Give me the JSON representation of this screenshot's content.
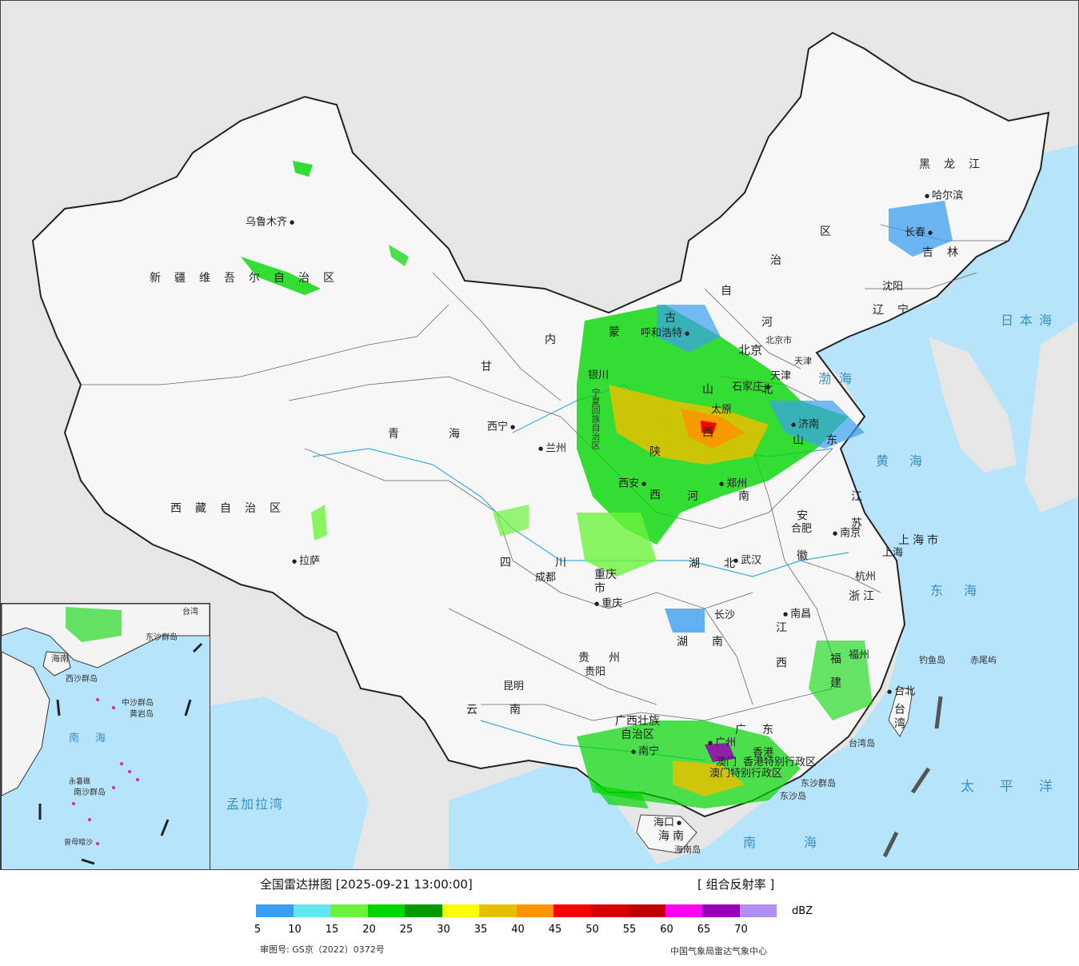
{
  "map": {
    "provinces": [
      {
        "id": "xinjiang",
        "label": "新疆维吾尔自治区"
      },
      {
        "id": "xizang",
        "label": "西藏自治区"
      },
      {
        "id": "qinghai",
        "label": "青海"
      },
      {
        "id": "gansu",
        "label": "甘"
      },
      {
        "id": "neimenggu",
        "label": "内"
      },
      {
        "id": "neimenggu-2",
        "label": "蒙"
      },
      {
        "id": "neimenggu-3",
        "label": "古"
      },
      {
        "id": "neimenggu-4",
        "label": "自"
      },
      {
        "id": "neimenggu-5",
        "label": "治"
      },
      {
        "id": "neimenggu-6",
        "label": "区"
      },
      {
        "id": "heilongjiang",
        "label": "黑龙江"
      },
      {
        "id": "jilin",
        "label": "吉林"
      },
      {
        "id": "liaoning",
        "label": "辽宁"
      },
      {
        "id": "hebei",
        "label": "河北"
      },
      {
        "id": "shanxi",
        "label": "山西"
      },
      {
        "id": "shandong",
        "label": "山东"
      },
      {
        "id": "henan",
        "label": "河南"
      },
      {
        "id": "shaanxi",
        "label": "陕西"
      },
      {
        "id": "ningxia",
        "label": "宁夏回族自治区"
      },
      {
        "id": "sichuan",
        "label": "四川"
      },
      {
        "id": "hubei",
        "label": "湖北"
      },
      {
        "id": "anhui",
        "label": "安徽"
      },
      {
        "id": "jiangsu",
        "label": "江苏"
      },
      {
        "id": "shanghai",
        "label": "上海市"
      },
      {
        "id": "zhejiang",
        "label": "浙江"
      },
      {
        "id": "jiangxi",
        "label": "江西"
      },
      {
        "id": "hunan",
        "label": "湖南"
      },
      {
        "id": "guizhou",
        "label": "贵州"
      },
      {
        "id": "yunnan",
        "label": "云南"
      },
      {
        "id": "guangxi",
        "label": "广西壮族自治区"
      },
      {
        "id": "guangdong",
        "label": "广东"
      },
      {
        "id": "fujian",
        "label": "福建"
      },
      {
        "id": "chongqing",
        "label": "重庆市"
      },
      {
        "id": "hainan",
        "label": "海南"
      },
      {
        "id": "taiwan",
        "label": "台湾"
      },
      {
        "id": "hongkong",
        "label": "香港特别行政区"
      },
      {
        "id": "macao",
        "label": "澳门特别行政区"
      },
      {
        "id": "beijing",
        "label": "北京"
      },
      {
        "id": "tianjin",
        "label": "天津"
      }
    ],
    "cities": [
      {
        "name": "乌鲁木齐"
      },
      {
        "name": "拉萨"
      },
      {
        "name": "西宁"
      },
      {
        "name": "兰州"
      },
      {
        "name": "银川"
      },
      {
        "name": "呼和浩特"
      },
      {
        "name": "北京市"
      },
      {
        "name": "天津"
      },
      {
        "name": "石家庄"
      },
      {
        "name": "太原"
      },
      {
        "name": "济南"
      },
      {
        "name": "西安"
      },
      {
        "name": "郑州"
      },
      {
        "name": "成都"
      },
      {
        "name": "重庆"
      },
      {
        "name": "武汉"
      },
      {
        "name": "合肥"
      },
      {
        "name": "南京"
      },
      {
        "name": "上海"
      },
      {
        "name": "杭州"
      },
      {
        "name": "南昌"
      },
      {
        "name": "长沙"
      },
      {
        "name": "贵阳"
      },
      {
        "name": "昆明"
      },
      {
        "name": "南宁"
      },
      {
        "name": "广州"
      },
      {
        "name": "香港"
      },
      {
        "name": "澳门"
      },
      {
        "name": "福州"
      },
      {
        "name": "台北"
      },
      {
        "name": "海口"
      },
      {
        "name": "沈阳"
      },
      {
        "name": "长春"
      },
      {
        "name": "哈尔滨"
      }
    ],
    "seas": [
      {
        "id": "japan-sea",
        "label": "日本海"
      },
      {
        "id": "bohai",
        "label": "渤海"
      },
      {
        "id": "huanghai",
        "label": "黄海"
      },
      {
        "id": "donghai",
        "label": "东海"
      },
      {
        "id": "pacific",
        "label": "太平洋"
      },
      {
        "id": "nanhai",
        "label": "南海"
      },
      {
        "id": "bengal",
        "label": "孟加拉湾"
      }
    ],
    "islands": [
      {
        "id": "diaoyu",
        "label": "钓鱼岛"
      },
      {
        "id": "chiwei",
        "label": "赤尾屿"
      },
      {
        "id": "taiwan-island",
        "label": "台湾岛"
      },
      {
        "id": "dongsha",
        "label": "东沙群岛"
      },
      {
        "id": "dongsha-2",
        "label": "东沙岛"
      },
      {
        "id": "hainan-island",
        "label": "海南岛"
      }
    ],
    "inset": {
      "labels": [
        {
          "id": "inset-hainan",
          "label": "海南"
        },
        {
          "id": "inset-xisha",
          "label": "西沙群岛"
        },
        {
          "id": "inset-zhongsha",
          "label": "中沙群岛"
        },
        {
          "id": "inset-huangyan",
          "label": "黄岩岛"
        },
        {
          "id": "inset-nanhai",
          "label": "南海"
        },
        {
          "id": "inset-nansha",
          "label": "南沙群岛"
        },
        {
          "id": "inset-zengmu",
          "label": "曾母暗沙"
        },
        {
          "id": "inset-yongshu",
          "label": "永暑礁"
        },
        {
          "id": "inset-taiwan",
          "label": "台湾"
        },
        {
          "id": "inset-dongsha",
          "label": "东沙群岛"
        }
      ]
    }
  },
  "legend": {
    "title": "全国雷达拼图 [2025-09-21 13:00:00]",
    "product": "[ 组合反射率 ]",
    "unit": "dBZ",
    "colors": [
      "#3b9ef0",
      "#64e6ec",
      "#6cf23c",
      "#02d602",
      "#019a01",
      "#ffff00",
      "#e6c000",
      "#ff9300",
      "#ff0000",
      "#d60000",
      "#c00000",
      "#ff00ef",
      "#9700b5",
      "#ad90f0"
    ],
    "ticks": [
      "5",
      "10",
      "15",
      "20",
      "25",
      "30",
      "35",
      "40",
      "45",
      "50",
      "55",
      "60",
      "65",
      "70"
    ],
    "approval": "审图号: GS京（2022）0372号",
    "source": "中国气象局雷达气象中心"
  }
}
